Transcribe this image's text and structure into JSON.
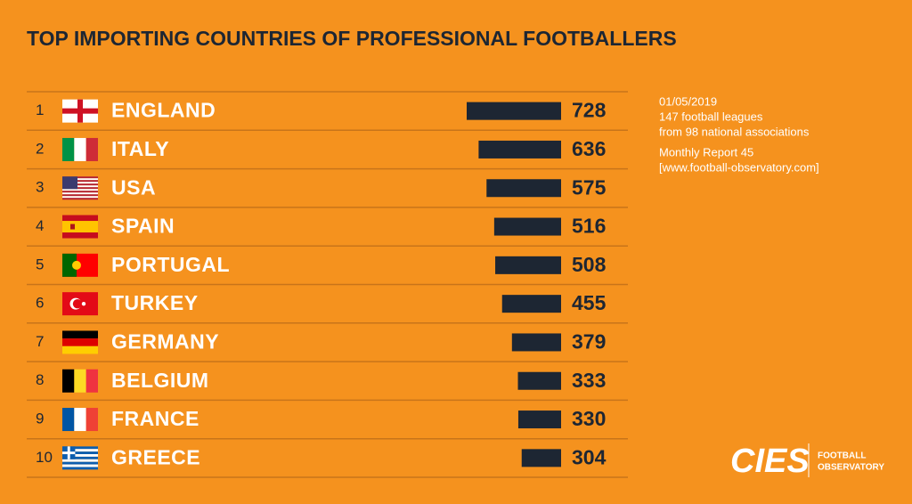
{
  "chart_data": {
    "type": "bar",
    "title": "TOP IMPORTING COUNTRIES OF PROFESSIONAL FOOTBALLERS",
    "ranks": [
      1,
      2,
      3,
      4,
      5,
      6,
      7,
      8,
      9,
      10
    ],
    "categories": [
      "ENGLAND",
      "ITALY",
      "USA",
      "SPAIN",
      "PORTUGAL",
      "TURKEY",
      "GERMANY",
      "BELGIUM",
      "FRANCE",
      "GREECE"
    ],
    "values": [
      728,
      636,
      575,
      516,
      508,
      455,
      379,
      333,
      330,
      304
    ],
    "color": "#1d2633"
  },
  "notes": [
    "01/05/2019",
    "147 football leagues",
    "from 98 national associations",
    "Monthly Report 45",
    "[www.football-observatory.com]"
  ],
  "logo": {
    "name": "CIES",
    "lines": [
      "FOOTBALL",
      "OBSERVATORY"
    ]
  }
}
